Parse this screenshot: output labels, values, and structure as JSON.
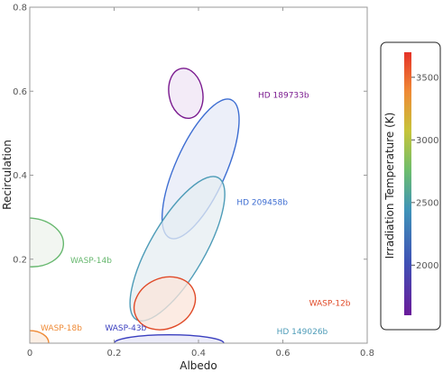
{
  "chart_data": {
    "type": "scatter",
    "xlabel": "Albedo",
    "ylabel": "Recirculation",
    "xlim": [
      0,
      0.8
    ],
    "ylim": [
      0,
      0.8
    ],
    "x_ticks": [
      "0",
      "0.2",
      "0.4",
      "0.6",
      "0.8"
    ],
    "y_ticks": [
      "0.2",
      "0.4",
      "0.6",
      "0.8"
    ],
    "grid": false,
    "series": [
      {
        "name": "HD 189733b",
        "center": [
          0.37,
          0.595
        ],
        "semi_axes": [
          0.04,
          0.06
        ],
        "angle_deg": -10,
        "temperature": 1200,
        "color": "#7a1a8f",
        "fill": "#efe4f4"
      },
      {
        "name": "HD 209458b",
        "center": [
          0.405,
          0.415
        ],
        "semi_axes": [
          0.06,
          0.18
        ],
        "angle_deg": 24,
        "temperature": 2000,
        "color": "#3e6ed2",
        "fill": "#e5eaf7"
      },
      {
        "name": "HD 149026b",
        "center": [
          0.35,
          0.225
        ],
        "semi_axes": [
          0.065,
          0.195
        ],
        "angle_deg": 30,
        "temperature": 2300,
        "color": "#4e9cb8",
        "fill": "#e6eef2"
      },
      {
        "name": "WASP-14b",
        "center": [
          0.0,
          0.24
        ],
        "semi_axes": [
          0.08,
          0.058
        ],
        "angle_deg": 5,
        "temperature": 2800,
        "color": "#67b86f",
        "fill": "#edf3ec"
      },
      {
        "name": "WASP-12b",
        "center": [
          0.32,
          0.095
        ],
        "semi_axes": [
          0.075,
          0.06
        ],
        "angle_deg": -25,
        "temperature": 3600,
        "color": "#e04a28",
        "fill": "#fbe4da"
      },
      {
        "name": "WASP-18b",
        "center": [
          0.0,
          0.0
        ],
        "semi_axes": [
          0.045,
          0.03
        ],
        "angle_deg": 0,
        "temperature": 3300,
        "color": "#ef8a35",
        "fill": "#fbeadb"
      },
      {
        "name": "WASP-43b",
        "center": [
          0.33,
          0.0
        ],
        "semi_axes": [
          0.13,
          0.02
        ],
        "angle_deg": 0,
        "temperature": 1400,
        "color": "#3a3fbf",
        "fill": "#e6e6f7"
      }
    ],
    "colorbar": {
      "label": "Irradiation Temperature (K)",
      "range": [
        1600,
        3700
      ],
      "ticks": [
        "2000",
        "2500",
        "3000",
        "3500"
      ]
    }
  }
}
